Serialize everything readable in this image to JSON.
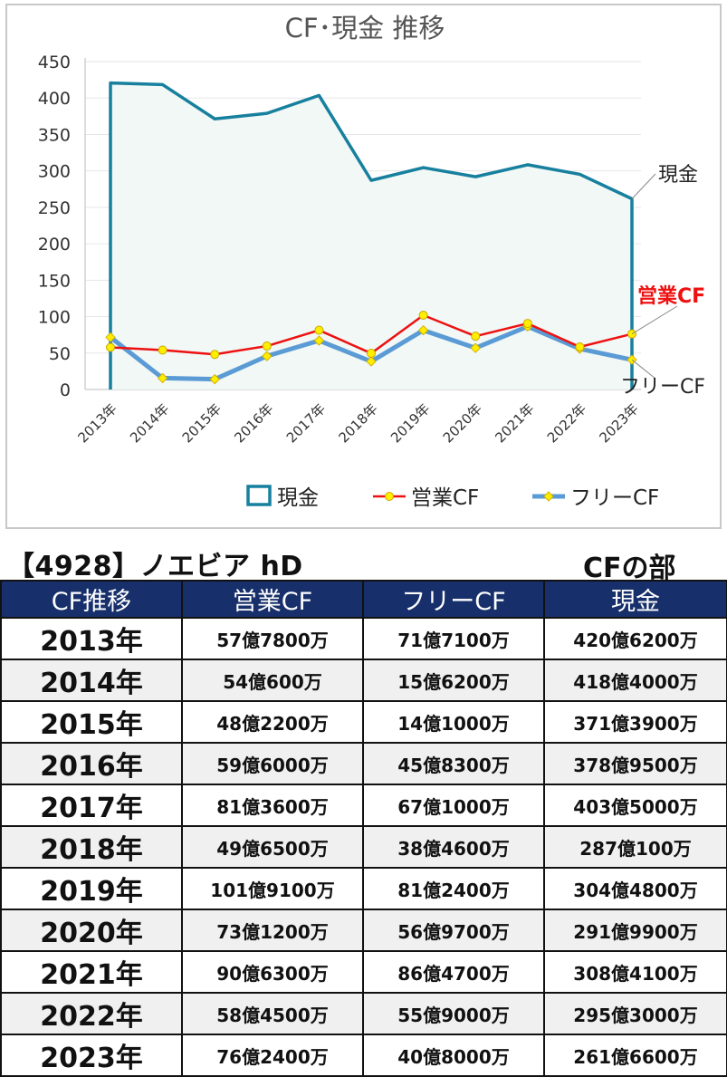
{
  "chart_data": {
    "type": "line",
    "title": "CF･現金 推移",
    "categories": [
      "2013年",
      "2014年",
      "2015年",
      "2016年",
      "2017年",
      "2018年",
      "2019年",
      "2020年",
      "2021年",
      "2022年",
      "2023年"
    ],
    "ylim": [
      0,
      450
    ],
    "yticks": [
      0,
      50,
      100,
      150,
      200,
      250,
      300,
      350,
      400,
      450
    ],
    "grid": true,
    "legend_position": "bottom",
    "series": [
      {
        "name": "現金",
        "style": "area",
        "color": "#17809e",
        "values": [
          420.62,
          418.4,
          371.39,
          378.95,
          403.5,
          287.01,
          304.48,
          291.99,
          308.41,
          295.3,
          261.66
        ]
      },
      {
        "name": "営業CF",
        "style": "line",
        "color": "#ee1111",
        "values": [
          57.78,
          54.06,
          48.22,
          59.6,
          81.36,
          49.65,
          101.91,
          73.12,
          90.63,
          58.45,
          76.24
        ]
      },
      {
        "name": "フリーCF",
        "style": "line",
        "color": "#5b9bd5",
        "values": [
          71.71,
          15.62,
          14.1,
          45.83,
          67.1,
          38.46,
          81.24,
          56.97,
          86.47,
          55.9,
          40.8
        ]
      }
    ],
    "annotations": [
      "現金",
      "営業CF",
      "フリーCF"
    ]
  },
  "colors": {
    "cash": "#17809e",
    "cash_fill": "#f1f8f5",
    "operating": "#ee1111",
    "free": "#5b9bd5",
    "marker": "#ffee00",
    "header_bg": "#17306b"
  },
  "company": "【4928】ノエビア hD",
  "section": "CFの部",
  "table": {
    "headers": [
      "CF推移",
      "営業CF",
      "フリーCF",
      "現金"
    ],
    "rows": [
      [
        "2013年",
        "57億7800万",
        "71億7100万",
        "420億6200万"
      ],
      [
        "2014年",
        "54億600万",
        "15億6200万",
        "418億4000万"
      ],
      [
        "2015年",
        "48億2200万",
        "14億1000万",
        "371億3900万"
      ],
      [
        "2016年",
        "59億6000万",
        "45億8300万",
        "378億9500万"
      ],
      [
        "2017年",
        "81億3600万",
        "67億1000万",
        "403億5000万"
      ],
      [
        "2018年",
        "49億6500万",
        "38億4600万",
        "287億100万"
      ],
      [
        "2019年",
        "101億9100万",
        "81億2400万",
        "304億4800万"
      ],
      [
        "2020年",
        "73億1200万",
        "56億9700万",
        "291億9900万"
      ],
      [
        "2021年",
        "90億6300万",
        "86億4700万",
        "308億4100万"
      ],
      [
        "2022年",
        "58億4500万",
        "55億9000万",
        "295億3000万"
      ],
      [
        "2023年",
        "76億2400万",
        "40億8000万",
        "261億6600万"
      ]
    ]
  }
}
